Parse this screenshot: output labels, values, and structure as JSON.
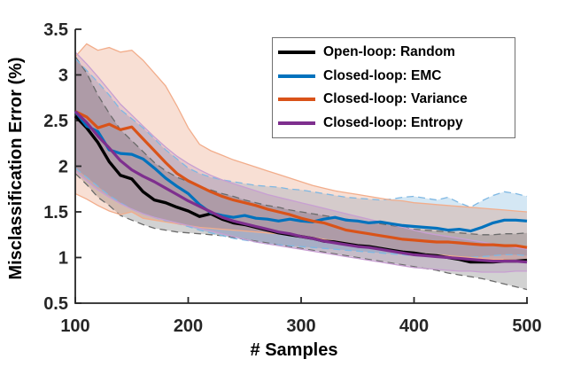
{
  "chart_data": {
    "type": "line",
    "title": "",
    "xlabel": "# Samples",
    "ylabel": "Misclassification Error (%)",
    "xlim": [
      100,
      500
    ],
    "ylim": [
      0.5,
      3.5
    ],
    "grid": false,
    "box": false,
    "axis_color": "#262626",
    "legend": {
      "position": "upper-right-inside",
      "border": true
    },
    "xticks": {
      "values": [
        100,
        200,
        300,
        400,
        500
      ],
      "labels": [
        "100",
        "200",
        "300",
        "400",
        "500"
      ]
    },
    "yticks": {
      "values": [
        0.5,
        1,
        1.5,
        2,
        2.5,
        3,
        3.5
      ],
      "labels": [
        "0.5",
        "1",
        "1.5",
        "2",
        "2.5",
        "3",
        "3.5"
      ]
    },
    "x": [
      100,
      110,
      120,
      130,
      140,
      150,
      160,
      170,
      180,
      190,
      200,
      210,
      220,
      230,
      240,
      250,
      260,
      270,
      280,
      290,
      300,
      310,
      320,
      330,
      340,
      350,
      360,
      370,
      380,
      390,
      400,
      410,
      420,
      430,
      440,
      450,
      460,
      470,
      480,
      490,
      500
    ],
    "series": [
      {
        "label": "Open-loop: Random",
        "color": "#000000",
        "line_width": 3.4,
        "band_fill": "rgba(125,125,125,0.35)",
        "band_edge_color": "#6b6b6b",
        "band_edge_style": "dashed",
        "values": [
          2.55,
          2.42,
          2.26,
          2.05,
          1.9,
          1.86,
          1.72,
          1.63,
          1.6,
          1.55,
          1.51,
          1.45,
          1.48,
          1.42,
          1.38,
          1.36,
          1.33,
          1.3,
          1.27,
          1.25,
          1.23,
          1.21,
          1.18,
          1.17,
          1.15,
          1.13,
          1.12,
          1.1,
          1.08,
          1.06,
          1.05,
          1.03,
          1.02,
          1.0,
          0.98,
          0.95,
          0.95,
          0.95,
          0.96,
          0.96,
          0.97
        ],
        "band_upper": [
          3.2,
          3.02,
          2.78,
          2.58,
          2.4,
          2.28,
          2.16,
          2.04,
          1.95,
          1.88,
          1.83,
          1.78,
          1.74,
          1.7,
          1.67,
          1.63,
          1.6,
          1.57,
          1.55,
          1.52,
          1.5,
          1.48,
          1.46,
          1.44,
          1.42,
          1.4,
          1.38,
          1.37,
          1.35,
          1.33,
          1.31,
          1.3,
          1.29,
          1.28,
          1.27,
          1.26,
          1.25,
          1.25,
          1.26,
          1.26,
          1.27
        ],
        "band_lower": [
          1.92,
          1.8,
          1.66,
          1.57,
          1.46,
          1.41,
          1.36,
          1.32,
          1.3,
          1.28,
          1.27,
          1.26,
          1.25,
          1.24,
          1.22,
          1.2,
          1.18,
          1.16,
          1.14,
          1.12,
          1.1,
          1.08,
          1.06,
          1.04,
          1.02,
          1.0,
          0.98,
          0.96,
          0.94,
          0.92,
          0.9,
          0.88,
          0.86,
          0.83,
          0.81,
          0.79,
          0.77,
          0.74,
          0.71,
          0.68,
          0.65
        ]
      },
      {
        "label": "Closed-loop: EMC",
        "color": "#0072BD",
        "line_width": 3.2,
        "band_fill": "rgba(0,114,189,0.17)",
        "band_edge_color": "#7fb8e3",
        "band_edge_style": "dashed",
        "values": [
          2.6,
          2.44,
          2.38,
          2.18,
          2.14,
          2.13,
          2.08,
          1.98,
          1.87,
          1.78,
          1.7,
          1.58,
          1.49,
          1.46,
          1.44,
          1.46,
          1.43,
          1.42,
          1.4,
          1.42,
          1.4,
          1.39,
          1.42,
          1.44,
          1.41,
          1.4,
          1.38,
          1.39,
          1.37,
          1.35,
          1.34,
          1.33,
          1.32,
          1.3,
          1.31,
          1.29,
          1.33,
          1.38,
          1.41,
          1.41,
          1.4
        ],
        "band_upper": [
          3.18,
          3.05,
          2.92,
          2.78,
          2.62,
          2.52,
          2.42,
          2.3,
          2.18,
          2.08,
          1.98,
          1.92,
          1.88,
          1.85,
          1.83,
          1.81,
          1.79,
          1.78,
          1.77,
          1.75,
          1.74,
          1.72,
          1.7,
          1.68,
          1.66,
          1.65,
          1.64,
          1.63,
          1.64,
          1.66,
          1.67,
          1.65,
          1.63,
          1.66,
          1.6,
          1.55,
          1.62,
          1.68,
          1.72,
          1.7,
          1.67
        ],
        "band_lower": [
          1.98,
          1.88,
          1.78,
          1.68,
          1.6,
          1.53,
          1.48,
          1.44,
          1.4,
          1.37,
          1.34,
          1.3,
          1.27,
          1.24,
          1.21,
          1.19,
          1.17,
          1.15,
          1.14,
          1.13,
          1.12,
          1.11,
          1.1,
          1.09,
          1.08,
          1.07,
          1.06,
          1.05,
          1.04,
          1.03,
          1.02,
          1.01,
          1.01,
          1.0,
          1.0,
          1.0,
          1.01,
          1.02,
          1.03,
          1.03,
          1.02
        ]
      },
      {
        "label": "Closed-loop: Variance",
        "color": "#D95319",
        "line_width": 3.2,
        "band_fill": "rgba(217,83,25,0.19)",
        "band_edge_color": "#f2ad8b",
        "band_edge_style": "solid",
        "values": [
          2.6,
          2.54,
          2.42,
          2.46,
          2.4,
          2.43,
          2.3,
          2.17,
          2.04,
          1.92,
          1.84,
          1.78,
          1.72,
          1.67,
          1.63,
          1.6,
          1.57,
          1.53,
          1.5,
          1.47,
          1.43,
          1.4,
          1.38,
          1.34,
          1.3,
          1.28,
          1.26,
          1.24,
          1.22,
          1.2,
          1.19,
          1.18,
          1.17,
          1.17,
          1.16,
          1.15,
          1.14,
          1.14,
          1.13,
          1.13,
          1.11
        ],
        "band_upper": [
          3.2,
          3.34,
          3.27,
          3.3,
          3.25,
          3.27,
          3.16,
          3.02,
          2.88,
          2.66,
          2.42,
          2.24,
          2.17,
          2.12,
          2.07,
          2.03,
          1.99,
          1.95,
          1.91,
          1.87,
          1.83,
          1.79,
          1.76,
          1.73,
          1.71,
          1.69,
          1.67,
          1.65,
          1.63,
          1.62,
          1.6,
          1.59,
          1.58,
          1.57,
          1.56,
          1.55,
          1.54,
          1.53,
          1.52,
          1.51,
          1.5
        ],
        "band_lower": [
          1.7,
          1.64,
          1.57,
          1.51,
          1.47,
          1.5,
          1.43,
          1.41,
          1.39,
          1.37,
          1.35,
          1.33,
          1.32,
          1.31,
          1.3,
          1.29,
          1.28,
          1.27,
          1.26,
          1.25,
          1.24,
          1.22,
          1.2,
          1.18,
          1.16,
          1.14,
          1.12,
          1.1,
          1.08,
          1.06,
          1.05,
          1.04,
          1.03,
          1.02,
          1.01,
          1.0,
          0.99,
          0.98,
          0.98,
          0.97,
          0.97
        ]
      },
      {
        "label": "Closed-loop: Entropy",
        "color": "#7E2F8E",
        "line_width": 3.2,
        "band_fill": "rgba(126,47,142,0.13)",
        "band_edge_color": "#c89fd2",
        "band_edge_style": "solid",
        "values": [
          2.6,
          2.48,
          2.33,
          2.2,
          2.06,
          1.96,
          1.89,
          1.83,
          1.76,
          1.69,
          1.62,
          1.56,
          1.5,
          1.44,
          1.4,
          1.37,
          1.34,
          1.31,
          1.28,
          1.26,
          1.23,
          1.21,
          1.18,
          1.16,
          1.14,
          1.12,
          1.11,
          1.09,
          1.07,
          1.05,
          1.03,
          1.02,
          1.01,
          1.0,
          0.99,
          0.98,
          0.97,
          0.96,
          0.96,
          0.96,
          0.95
        ],
        "band_upper": [
          3.25,
          3.12,
          2.98,
          2.83,
          2.68,
          2.56,
          2.44,
          2.32,
          2.21,
          2.11,
          2.03,
          1.96,
          1.9,
          1.85,
          1.81,
          1.77,
          1.73,
          1.69,
          1.66,
          1.63,
          1.6,
          1.57,
          1.54,
          1.51,
          1.48,
          1.45,
          1.42,
          1.39,
          1.36,
          1.33,
          1.3,
          1.27,
          1.25,
          1.23,
          1.21,
          1.19,
          1.17,
          1.15,
          1.13,
          1.11,
          1.09
        ],
        "band_lower": [
          1.95,
          1.84,
          1.74,
          1.66,
          1.59,
          1.53,
          1.48,
          1.44,
          1.41,
          1.38,
          1.35,
          1.32,
          1.29,
          1.26,
          1.23,
          1.2,
          1.17,
          1.15,
          1.13,
          1.11,
          1.09,
          1.07,
          1.05,
          1.03,
          1.01,
          0.99,
          0.97,
          0.95,
          0.93,
          0.91,
          0.89,
          0.88,
          0.87,
          0.86,
          0.85,
          0.85,
          0.84,
          0.84,
          0.84,
          0.85,
          0.85
        ]
      }
    ]
  }
}
